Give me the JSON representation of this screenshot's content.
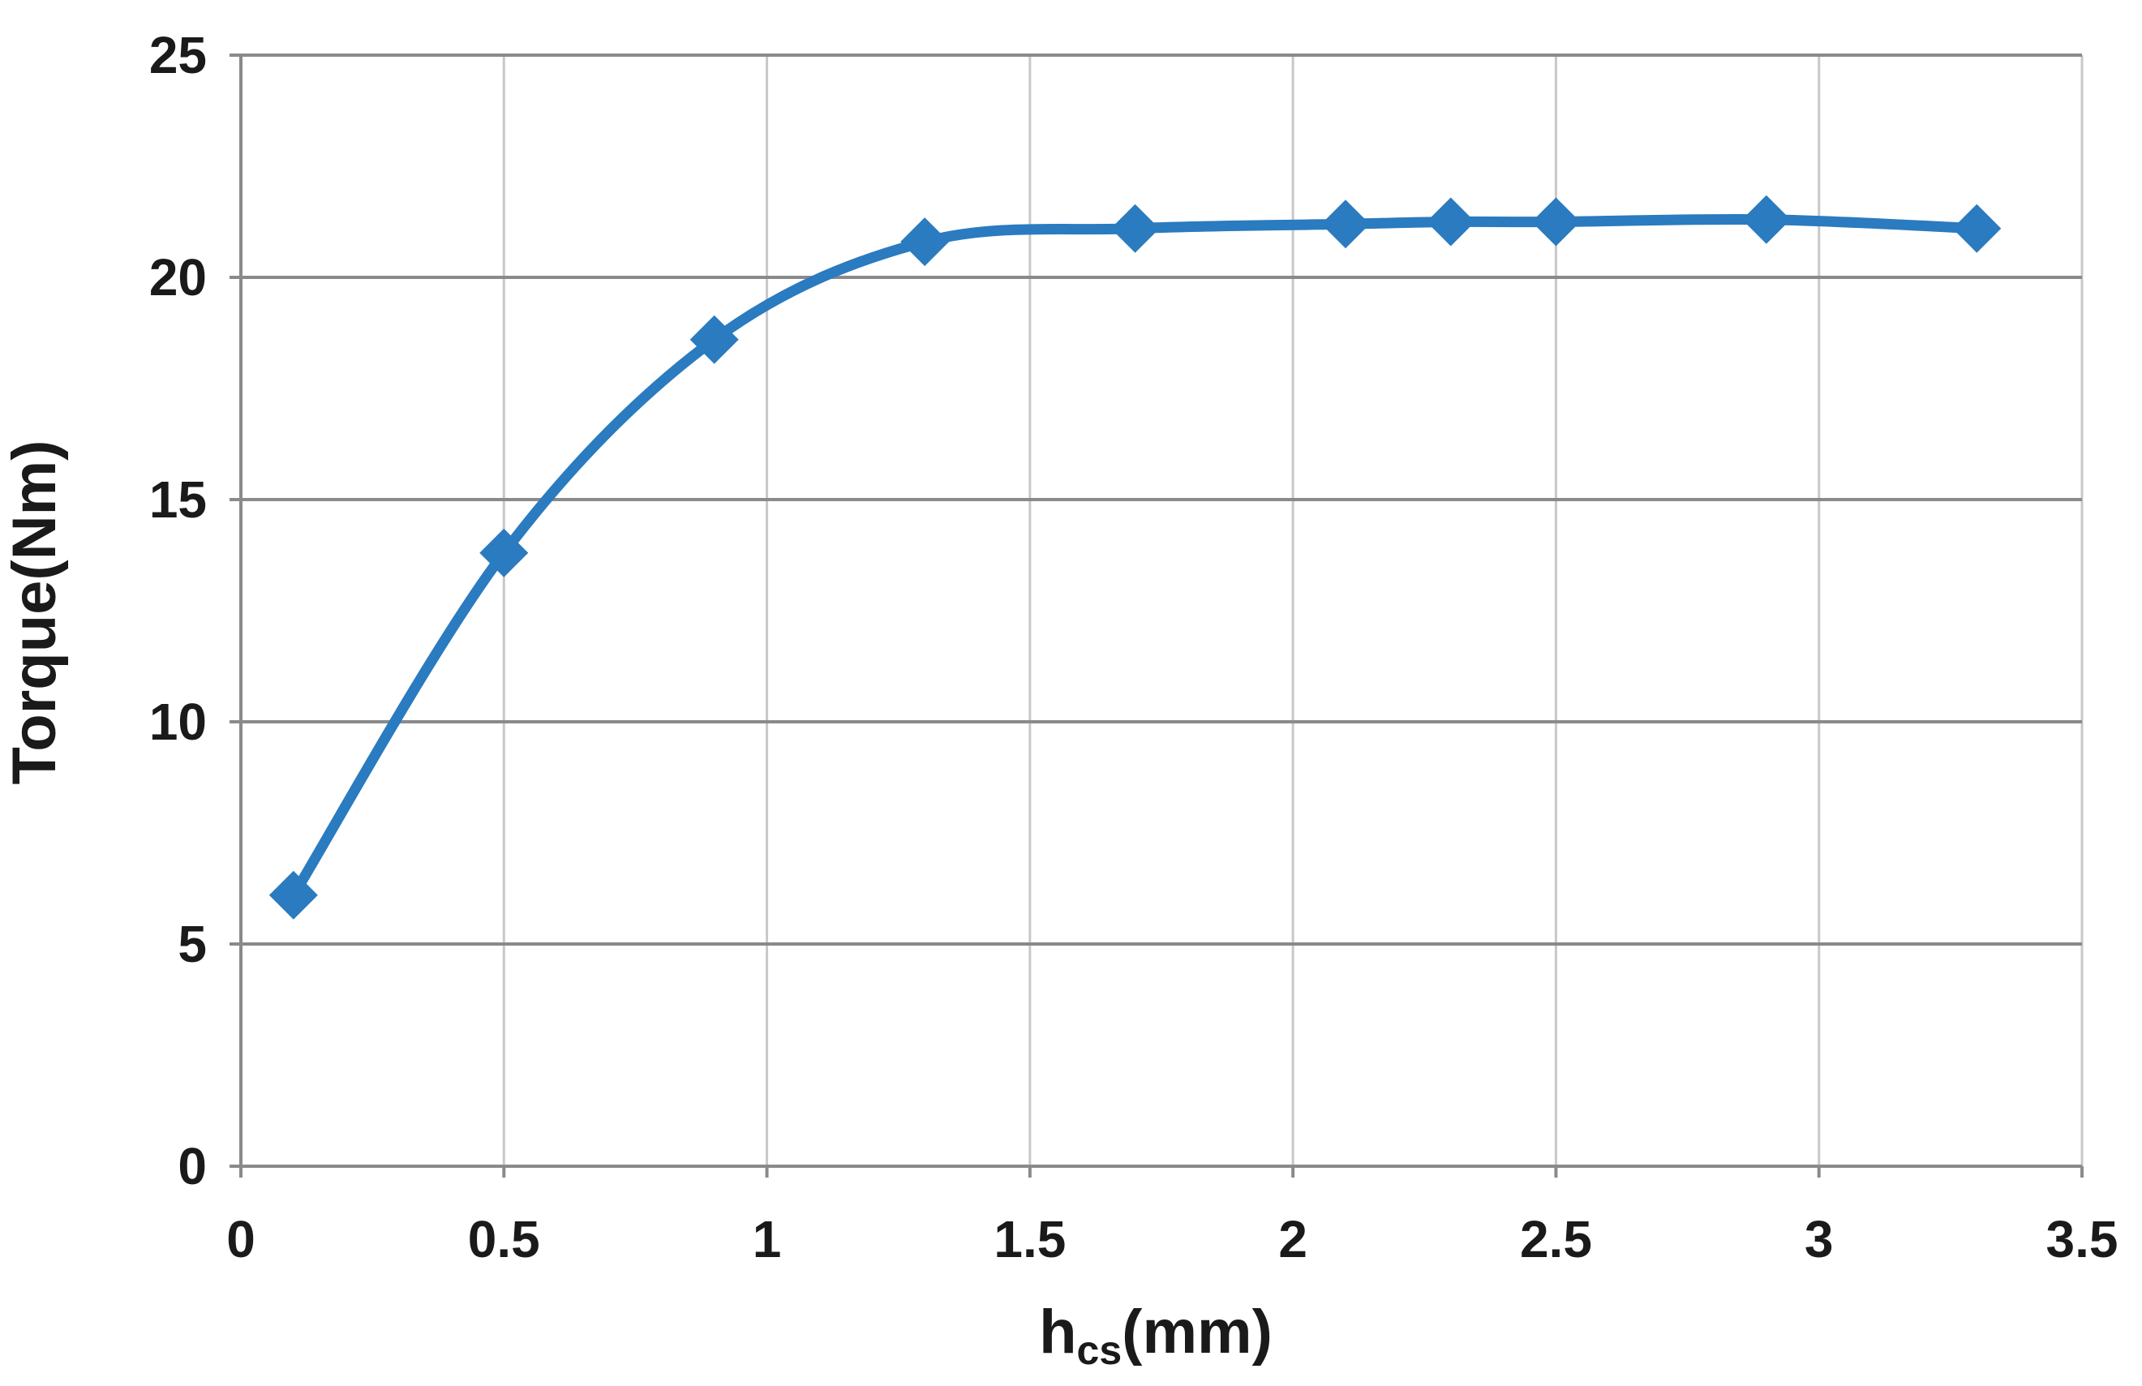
{
  "chart_data": {
    "type": "line",
    "smooth": true,
    "xlabel_main": "h",
    "xlabel_sub": "cs",
    "xlabel_unit": "(mm)",
    "ylabel": "Torque(Nm)",
    "xlim": [
      0,
      3.5
    ],
    "ylim": [
      0,
      25
    ],
    "xticks": [
      0,
      0.5,
      1,
      1.5,
      2,
      2.5,
      3,
      3.5
    ],
    "xtick_labels": [
      "0",
      "0.5",
      "1",
      "1.5",
      "2",
      "2.5",
      "3",
      "3.5"
    ],
    "yticks": [
      0,
      5,
      10,
      15,
      20,
      25
    ],
    "ytick_labels": [
      "0",
      "5",
      "10",
      "15",
      "20",
      "25"
    ],
    "grid": true,
    "marker": "diamond",
    "color": "#2a7bbf",
    "series": [
      {
        "x": [
          0.1,
          0.5,
          0.9,
          1.3,
          1.7,
          2.1,
          2.3,
          2.5,
          2.9,
          3.3
        ],
        "values": [
          6.1,
          13.8,
          18.6,
          20.8,
          21.1,
          21.2,
          21.25,
          21.25,
          21.3,
          21.1
        ]
      }
    ]
  }
}
